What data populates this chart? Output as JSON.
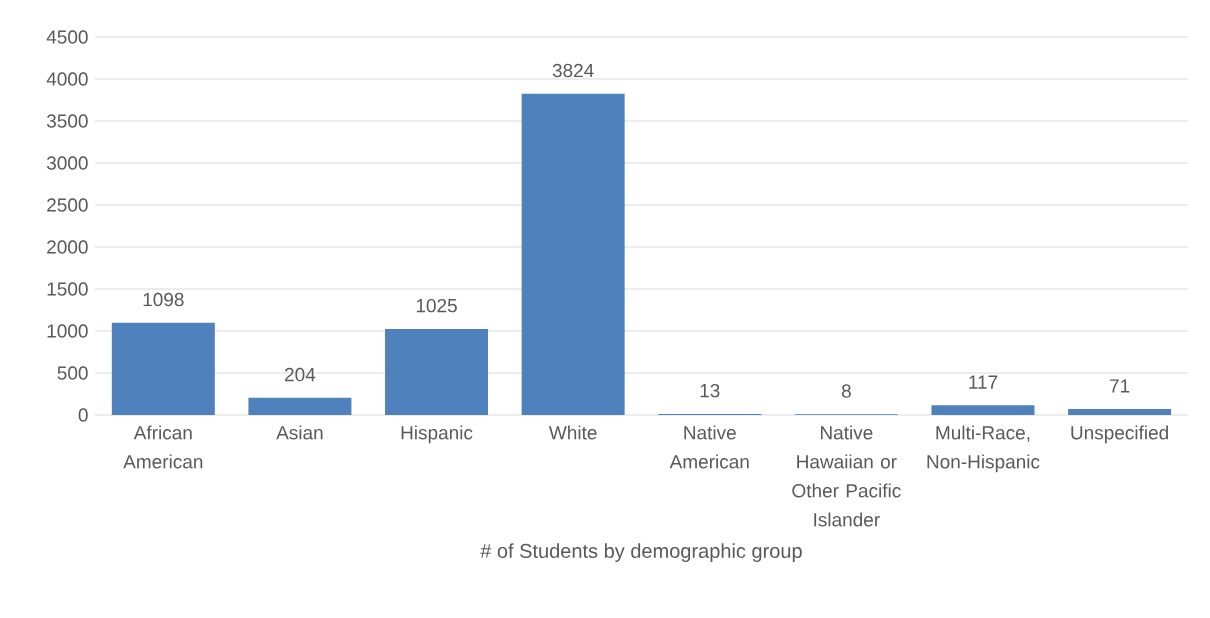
{
  "chart_data": {
    "type": "bar",
    "xlabel": "# of Students by demographic group",
    "categories": [
      "African American",
      "Asian",
      "Hispanic",
      "White",
      "Native American",
      "Native Hawaiian or Other Pacific Islander",
      "Multi-Race, Non-Hispanic",
      "Unspecified"
    ],
    "values": [
      1098,
      204,
      1025,
      3824,
      13,
      8,
      117,
      71
    ],
    "color": "#4f81bd",
    "ylim": [
      0,
      4500
    ],
    "yticks": [
      0,
      500,
      1000,
      1500,
      2000,
      2500,
      3000,
      3500,
      4000,
      4500
    ],
    "grid": "y",
    "data_labels": true
  }
}
